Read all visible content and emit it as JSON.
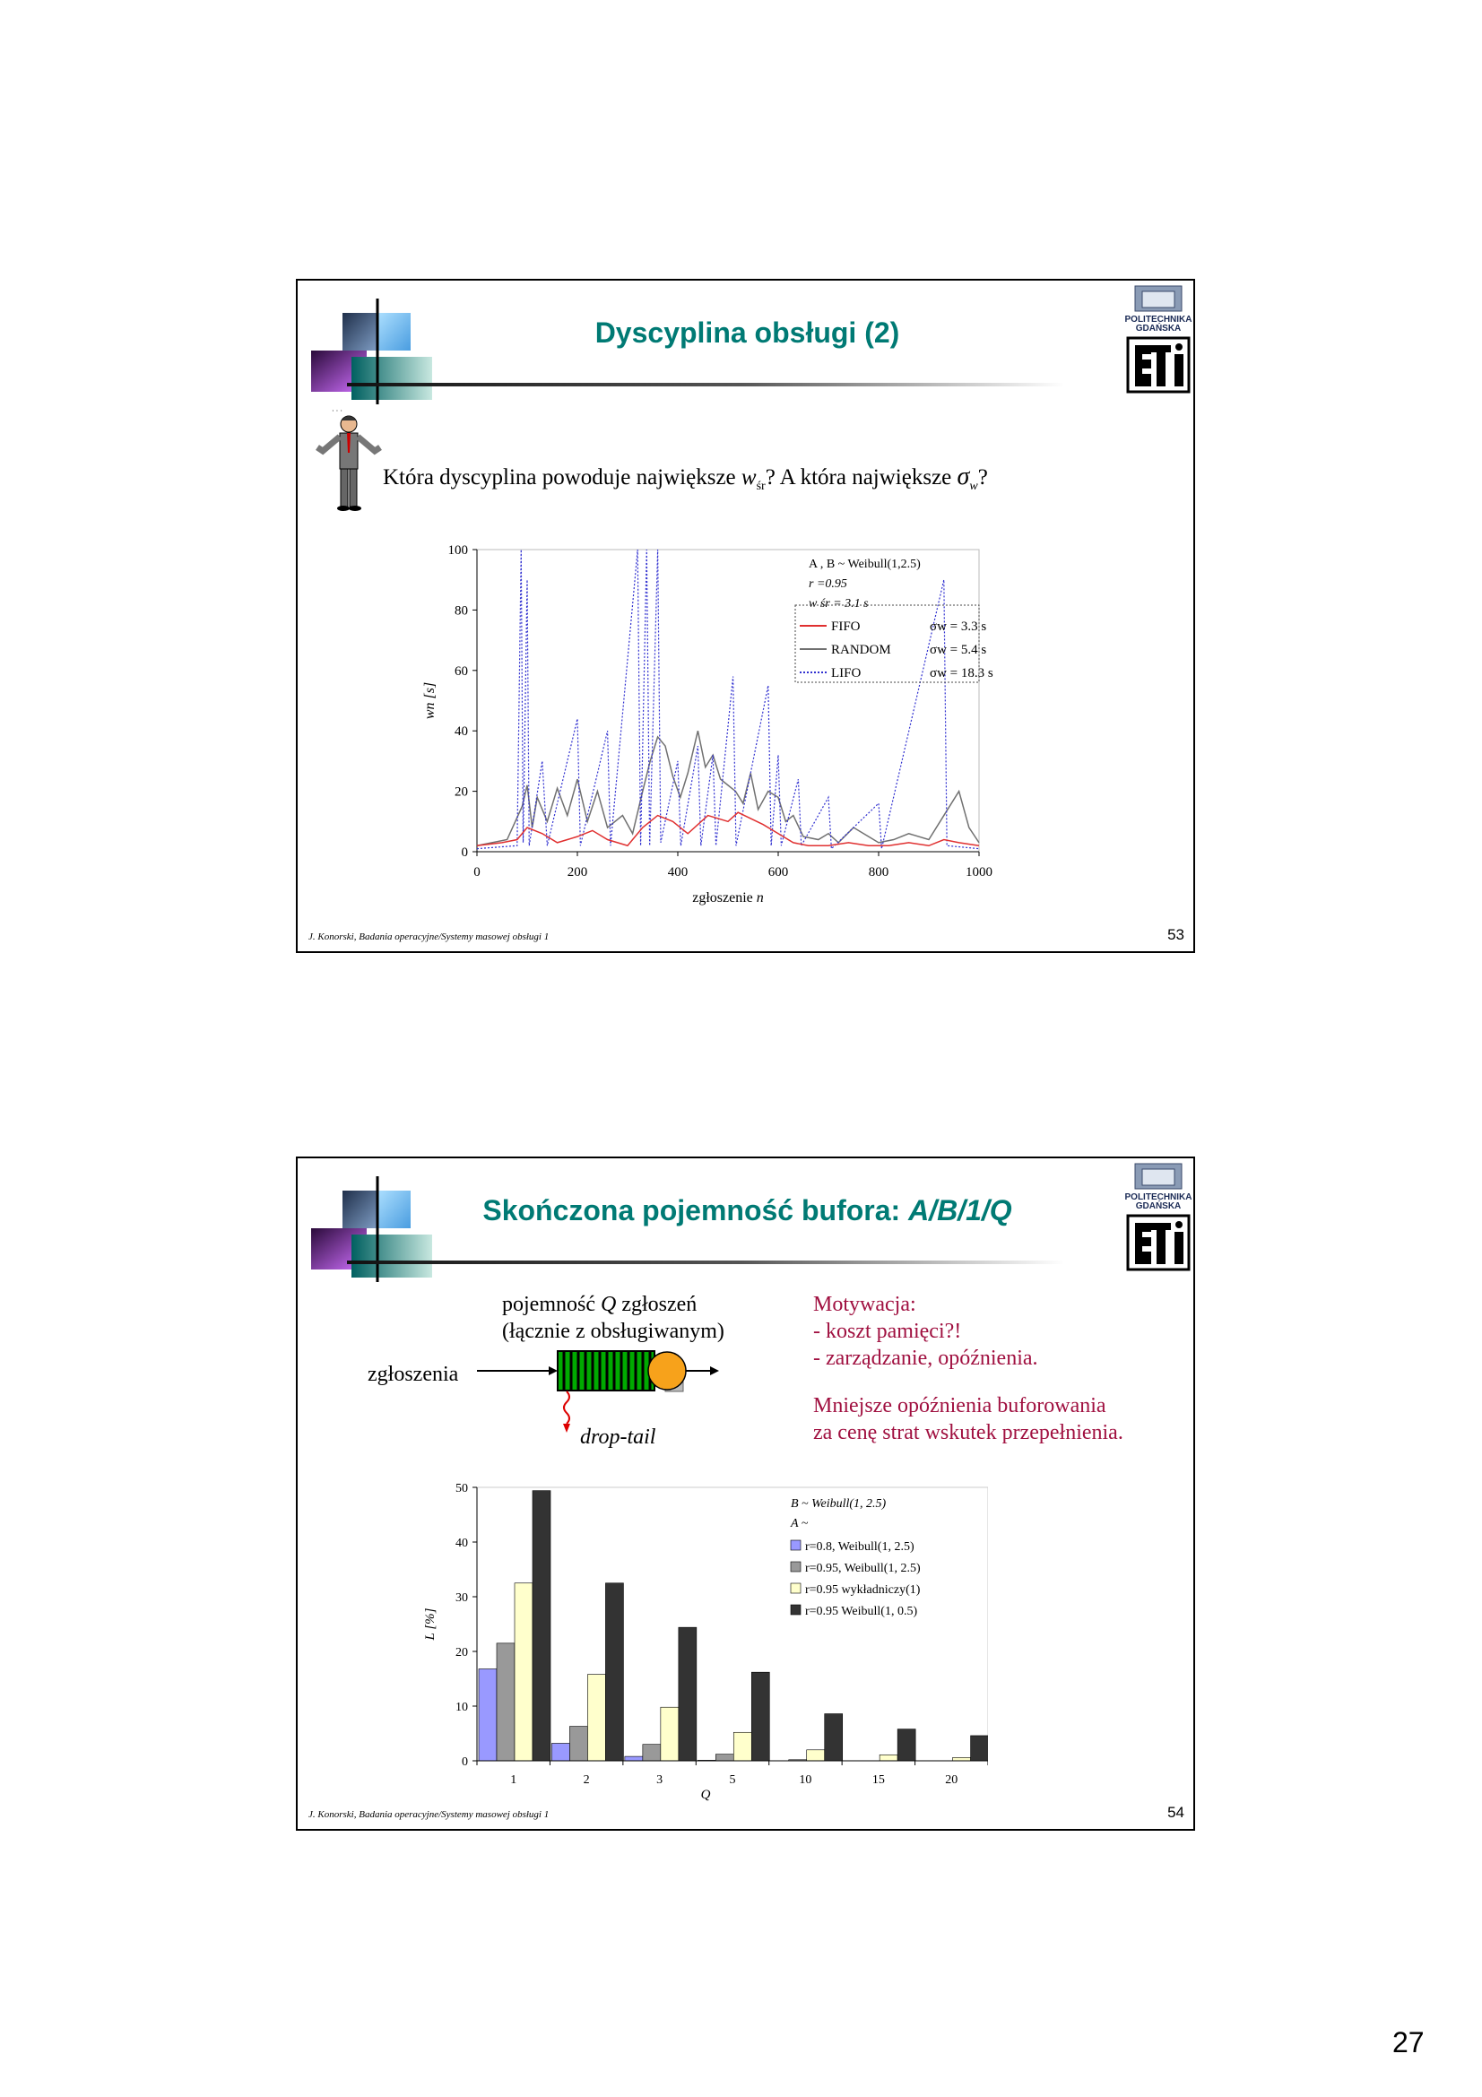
{
  "colors": {
    "title": "#007a74",
    "motivation": "#a01040",
    "fifo": "#e03030",
    "random": "#707070",
    "lifo": "#3030d0"
  },
  "slide1": {
    "title": "Dyscyplina obsługi (2)",
    "logo_text": [
      "POLITECHNIKA",
      "GDAŃSKA"
    ],
    "question": {
      "pre": "Która dyscyplina powoduje największe ",
      "w1": "w",
      "sub1": "śr",
      "mid": "? A która największe ",
      "sigma": "σ",
      "sub2": "w",
      "post": "?"
    },
    "footer": "J. Konorski, Badania operacyjne/Systemy masowej obsługi 1",
    "page": "53",
    "chart_data": {
      "type": "line",
      "xlabel": "zgłoszenie n",
      "ylabel": "wn [s]",
      "xlim": [
        0,
        1000
      ],
      "ylim": [
        0,
        100
      ],
      "xticks": [
        "0",
        "200",
        "400",
        "600",
        "800",
        "1000"
      ],
      "yticks": [
        "0",
        "20",
        "40",
        "60",
        "80",
        "100"
      ],
      "annotation": [
        "A , B ~  Weibull(1,2.5)",
        "r =0.95",
        "w śr = 3.1 s"
      ],
      "series": [
        {
          "name": "FIFO",
          "sigma": "σw =   3.3 s",
          "color": "#e03030",
          "points": [
            [
              0,
              2
            ],
            [
              50,
              3
            ],
            [
              80,
              4
            ],
            [
              100,
              8
            ],
            [
              130,
              6
            ],
            [
              160,
              3
            ],
            [
              200,
              5
            ],
            [
              230,
              7
            ],
            [
              260,
              4
            ],
            [
              300,
              2
            ],
            [
              330,
              8
            ],
            [
              360,
              12
            ],
            [
              390,
              10
            ],
            [
              420,
              6
            ],
            [
              440,
              9
            ],
            [
              460,
              12
            ],
            [
              480,
              11
            ],
            [
              500,
              10
            ],
            [
              520,
              13
            ],
            [
              545,
              11
            ],
            [
              570,
              9
            ],
            [
              600,
              6
            ],
            [
              630,
              3
            ],
            [
              660,
              2
            ],
            [
              700,
              2
            ],
            [
              740,
              3
            ],
            [
              780,
              2
            ],
            [
              820,
              2
            ],
            [
              860,
              3
            ],
            [
              900,
              2
            ],
            [
              930,
              4
            ],
            [
              960,
              3
            ],
            [
              1000,
              2
            ]
          ]
        },
        {
          "name": "RANDOM",
          "sigma": "σw =   5.4 s",
          "color": "#707070",
          "points": [
            [
              0,
              2
            ],
            [
              60,
              4
            ],
            [
              90,
              15
            ],
            [
              100,
              22
            ],
            [
              110,
              8
            ],
            [
              120,
              18
            ],
            [
              140,
              10
            ],
            [
              160,
              21
            ],
            [
              180,
              12
            ],
            [
              200,
              24
            ],
            [
              220,
              10
            ],
            [
              240,
              20
            ],
            [
              260,
              8
            ],
            [
              290,
              12
            ],
            [
              310,
              6
            ],
            [
              330,
              20
            ],
            [
              345,
              30
            ],
            [
              360,
              38
            ],
            [
              375,
              35
            ],
            [
              390,
              25
            ],
            [
              405,
              18
            ],
            [
              420,
              26
            ],
            [
              440,
              40
            ],
            [
              455,
              28
            ],
            [
              470,
              32
            ],
            [
              485,
              24
            ],
            [
              500,
              22
            ],
            [
              515,
              20
            ],
            [
              530,
              16
            ],
            [
              545,
              26
            ],
            [
              560,
              14
            ],
            [
              580,
              20
            ],
            [
              600,
              18
            ],
            [
              615,
              10
            ],
            [
              630,
              12
            ],
            [
              650,
              5
            ],
            [
              680,
              4
            ],
            [
              700,
              6
            ],
            [
              720,
              3
            ],
            [
              750,
              8
            ],
            [
              780,
              5
            ],
            [
              800,
              3
            ],
            [
              830,
              4
            ],
            [
              860,
              6
            ],
            [
              900,
              4
            ],
            [
              930,
              12
            ],
            [
              960,
              20
            ],
            [
              980,
              8
            ],
            [
              1000,
              3
            ]
          ]
        },
        {
          "name": "LIFO",
          "sigma": "σw = 18.3 s",
          "color": "#3030d0",
          "points": [
            [
              0,
              1
            ],
            [
              80,
              2
            ],
            [
              88,
              100
            ],
            [
              92,
              3
            ],
            [
              100,
              90
            ],
            [
              104,
              2
            ],
            [
              130,
              30
            ],
            [
              140,
              2
            ],
            [
              200,
              44
            ],
            [
              206,
              2
            ],
            [
              260,
              40
            ],
            [
              266,
              2
            ],
            [
              320,
              100
            ],
            [
              326,
              2
            ],
            [
              338,
              100
            ],
            [
              344,
              2
            ],
            [
              360,
              100
            ],
            [
              366,
              3
            ],
            [
              400,
              30
            ],
            [
              406,
              2
            ],
            [
              440,
              35
            ],
            [
              446,
              2
            ],
            [
              470,
              32
            ],
            [
              476,
              2
            ],
            [
              510,
              58
            ],
            [
              516,
              2
            ],
            [
              580,
              55
            ],
            [
              586,
              2
            ],
            [
              600,
              32
            ],
            [
              606,
              2
            ],
            [
              640,
              24
            ],
            [
              646,
              2
            ],
            [
              700,
              18
            ],
            [
              706,
              1
            ],
            [
              800,
              16
            ],
            [
              806,
              1
            ],
            [
              930,
              90
            ],
            [
              936,
              2
            ],
            [
              1000,
              1
            ]
          ]
        }
      ]
    }
  },
  "slide2": {
    "title_plain": "Skończona pojemność bufora: ",
    "title_model": "A/B/1/Q",
    "logo_text": [
      "POLITECHNIKA",
      "GDAŃSKA"
    ],
    "capacity_line1_pre": "pojemność ",
    "capacity_q": "Q",
    "capacity_line1_post": " zgłoszeń",
    "capacity_line2": "(łącznie z obsługiwanym)",
    "arrivals_label": "zgłoszenia",
    "drop_label": "drop-tail",
    "motivation": [
      "Motywacja:",
      " - koszt pamięci?!",
      " - zarządzanie, opóźnienia.",
      "Mniejsze opóźnienia buforowania",
      "za cenę strat wskutek przepełnienia."
    ],
    "footer": "J. Konorski, Badania operacyjne/Systemy masowej obsługi 1",
    "page": "54",
    "chart_data": {
      "type": "bar",
      "xlabel": "Q",
      "ylabel": "L [%]",
      "ylim": [
        0,
        50
      ],
      "yticks": [
        "0",
        "10",
        "20",
        "30",
        "40",
        "50"
      ],
      "categories": [
        "1",
        "2",
        "3",
        "5",
        "10",
        "15",
        "20"
      ],
      "annotation": [
        "B ~  Weibull(1, 2.5)",
        "A ~"
      ],
      "series": [
        {
          "name": "r=0.8, Weibull(1, 2.5)",
          "color": "#9999ff",
          "values": [
            16.8,
            3.2,
            0.8,
            0.1,
            0.0,
            0.0,
            0.0
          ]
        },
        {
          "name": "r=0.95, Weibull(1, 2.5)",
          "color": "#999999",
          "values": [
            21.5,
            6.3,
            3.0,
            1.2,
            0.2,
            0.0,
            0.0
          ]
        },
        {
          "name": "r=0.95 wykładniczy(1)",
          "color": "#ffffcc",
          "values": [
            32.5,
            15.8,
            9.8,
            5.2,
            2.0,
            1.1,
            0.6
          ]
        },
        {
          "name": "r=0.95 Weibull(1, 0.5)",
          "color": "#333333",
          "values": [
            49.4,
            32.5,
            24.4,
            16.2,
            8.6,
            5.8,
            4.6
          ]
        }
      ]
    }
  },
  "page_number": "27"
}
